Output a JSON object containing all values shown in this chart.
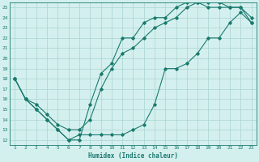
{
  "xlabel": "Humidex (Indice chaleur)",
  "ylabel": "",
  "background_color": "#d4f0ee",
  "grid_color": "#b0d8d4",
  "line_color": "#1a7a6e",
  "xlim": [
    0.5,
    23.5
  ],
  "ylim": [
    11.5,
    25.5
  ],
  "xticks": [
    1,
    2,
    3,
    4,
    5,
    6,
    7,
    8,
    9,
    10,
    11,
    12,
    13,
    14,
    15,
    16,
    17,
    18,
    19,
    20,
    21,
    22,
    23
  ],
  "yticks": [
    12,
    13,
    14,
    15,
    16,
    17,
    18,
    19,
    20,
    21,
    22,
    23,
    24,
    25
  ],
  "line1_x": [
    1,
    2,
    3,
    4,
    5,
    6,
    7,
    8,
    9,
    10,
    11,
    12,
    13,
    14,
    15,
    16,
    17,
    18,
    19,
    20,
    21,
    22,
    23
  ],
  "line1_y": [
    18,
    16,
    15,
    14,
    13,
    12,
    12,
    15.5,
    18.5,
    19.5,
    22,
    22,
    23.5,
    24,
    24,
    25,
    25.5,
    25.5,
    25,
    25,
    25,
    25,
    24
  ],
  "line2_x": [
    1,
    2,
    3,
    4,
    5,
    6,
    7,
    8,
    9,
    10,
    11,
    12,
    13,
    14,
    15,
    16,
    17,
    18,
    19,
    20,
    21,
    22,
    23
  ],
  "line2_y": [
    18,
    16,
    15,
    14,
    13,
    12,
    12.5,
    12.5,
    12.5,
    12.5,
    12.5,
    13,
    13.5,
    15.5,
    19,
    19,
    19.5,
    20.5,
    22,
    22,
    23.5,
    24.5,
    23.5
  ],
  "line3_x": [
    1,
    2,
    3,
    4,
    5,
    6,
    7,
    8,
    9,
    10,
    11,
    12,
    13,
    14,
    15,
    16,
    17,
    18,
    19,
    20,
    21,
    22,
    23
  ],
  "line3_y": [
    18,
    16,
    15.5,
    14.5,
    13.5,
    13,
    13,
    14,
    17,
    19,
    20.5,
    21,
    22,
    23,
    23.5,
    24,
    25,
    25.5,
    25.5,
    25.5,
    25,
    25,
    23.5
  ]
}
